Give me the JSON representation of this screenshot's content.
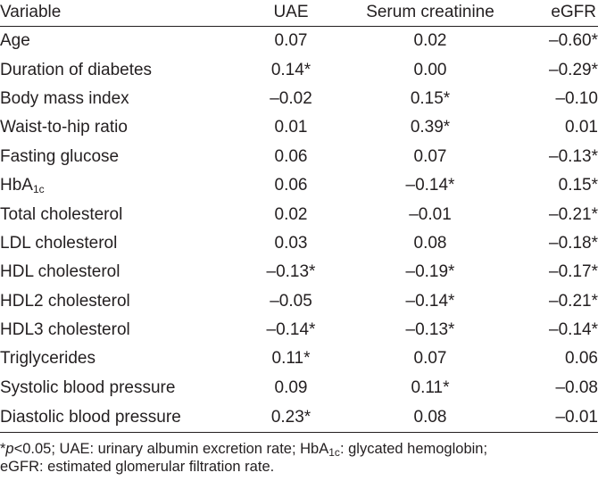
{
  "table": {
    "headers": {
      "variable": "Variable",
      "uae": "UAE",
      "serum_creatinine": "Serum creatinine",
      "egfr": "eGFR"
    },
    "rows": [
      {
        "variable": "Age",
        "variable_sub": "",
        "variable_suffix": "",
        "uae": "0.07",
        "serum_creatinine": "0.02",
        "egfr": "–0.60*"
      },
      {
        "variable": "Duration of diabetes",
        "variable_sub": "",
        "variable_suffix": "",
        "uae": "0.14*",
        "serum_creatinine": "0.00",
        "egfr": "–0.29*"
      },
      {
        "variable": "Body mass index",
        "variable_sub": "",
        "variable_suffix": "",
        "uae": "–0.02",
        "serum_creatinine": "0.15*",
        "egfr": "–0.10"
      },
      {
        "variable": "Waist-to-hip ratio",
        "variable_sub": "",
        "variable_suffix": "",
        "uae": "0.01",
        "serum_creatinine": "0.39*",
        "egfr": "0.01"
      },
      {
        "variable": "Fasting glucose",
        "variable_sub": "",
        "variable_suffix": "",
        "uae": "0.06",
        "serum_creatinine": "0.07",
        "egfr": "–0.13*"
      },
      {
        "variable": "HbA",
        "variable_sub": "1c",
        "variable_suffix": "",
        "uae": "0.06",
        "serum_creatinine": "–0.14*",
        "egfr": "0.15*"
      },
      {
        "variable": "Total cholesterol",
        "variable_sub": "",
        "variable_suffix": "",
        "uae": "0.02",
        "serum_creatinine": "–0.01",
        "egfr": "–0.21*"
      },
      {
        "variable": "LDL cholesterol",
        "variable_sub": "",
        "variable_suffix": "",
        "uae": "0.03",
        "serum_creatinine": "0.08",
        "egfr": "–0.18*"
      },
      {
        "variable": "HDL cholesterol",
        "variable_sub": "",
        "variable_suffix": "",
        "uae": "–0.13*",
        "serum_creatinine": "–0.19*",
        "egfr": "–0.17*"
      },
      {
        "variable": "HDL2 cholesterol",
        "variable_sub": "",
        "variable_suffix": "",
        "uae": "–0.05",
        "serum_creatinine": "–0.14*",
        "egfr": "–0.21*"
      },
      {
        "variable": "HDL3 cholesterol",
        "variable_sub": "",
        "variable_suffix": "",
        "uae": "–0.14*",
        "serum_creatinine": "–0.13*",
        "egfr": "–0.14*"
      },
      {
        "variable": "Triglycerides",
        "variable_sub": "",
        "variable_suffix": "",
        "uae": "0.11*",
        "serum_creatinine": "0.07",
        "egfr": "0.06"
      },
      {
        "variable": "Systolic blood pressure",
        "variable_sub": "",
        "variable_suffix": "",
        "uae": "0.09",
        "serum_creatinine": "0.11*",
        "egfr": "–0.08"
      },
      {
        "variable": "Diastolic blood pressure",
        "variable_sub": "",
        "variable_suffix": "",
        "uae": "0.23*",
        "serum_creatinine": "0.08",
        "egfr": "–0.01"
      }
    ]
  },
  "footnote": {
    "star": "*",
    "p": "p",
    "part1": "<0.05; UAE: urinary albumin excretion rate; HbA",
    "sub": "1c",
    "part2": ": glycated hemoglobin;",
    "line2": "eGFR: estimated glomerular filtration rate."
  },
  "colors": {
    "text": "#231f20",
    "rule": "#231f20",
    "background": "#ffffff"
  }
}
